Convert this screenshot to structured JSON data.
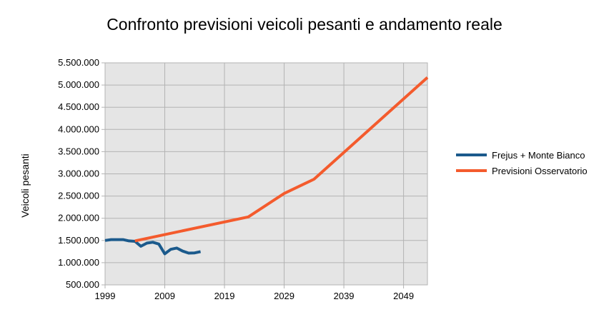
{
  "chart_data": {
    "type": "line",
    "title": "Confronto previsioni veicoli pesanti e andamento reale",
    "xlabel": "",
    "ylabel": "Veicoli  pesanti",
    "xlim": [
      1999,
      2053
    ],
    "ylim": [
      500000,
      5500000
    ],
    "x_ticks": [
      1999,
      2009,
      2019,
      2029,
      2039,
      2049
    ],
    "x_tick_labels": [
      "1999",
      "2009",
      "2019",
      "2029",
      "2039",
      "2049"
    ],
    "y_ticks": [
      500000,
      1000000,
      1500000,
      2000000,
      2500000,
      3000000,
      3500000,
      4000000,
      4500000,
      5000000,
      5500000
    ],
    "y_tick_labels": [
      "500.000",
      "1.000.000",
      "1.500.000",
      "2.000.000",
      "2.500.000",
      "3.000.000",
      "3.500.000",
      "4.000.000",
      "4.500.000",
      "5.000.000",
      "5.500.000"
    ],
    "grid": true,
    "legend_position": "right",
    "series": [
      {
        "name": "Frejus + Monte Bianco",
        "color": "#1b5a8c",
        "x": [
          1999,
          2000,
          2001,
          2002,
          2003,
          2004,
          2005,
          2006,
          2007,
          2008,
          2009,
          2010,
          2011,
          2012,
          2013,
          2014,
          2015
        ],
        "y": [
          1500000,
          1520000,
          1520000,
          1520000,
          1490000,
          1480000,
          1370000,
          1440000,
          1460000,
          1420000,
          1200000,
          1300000,
          1330000,
          1260000,
          1215000,
          1220000,
          1250000
        ]
      },
      {
        "name": "Previsioni  Osservatorio",
        "color": "#f45b2d",
        "x": [
          2004,
          2023,
          2029,
          2034,
          2053
        ],
        "y": [
          1490000,
          2030000,
          2560000,
          2880000,
          5170000
        ]
      }
    ]
  }
}
